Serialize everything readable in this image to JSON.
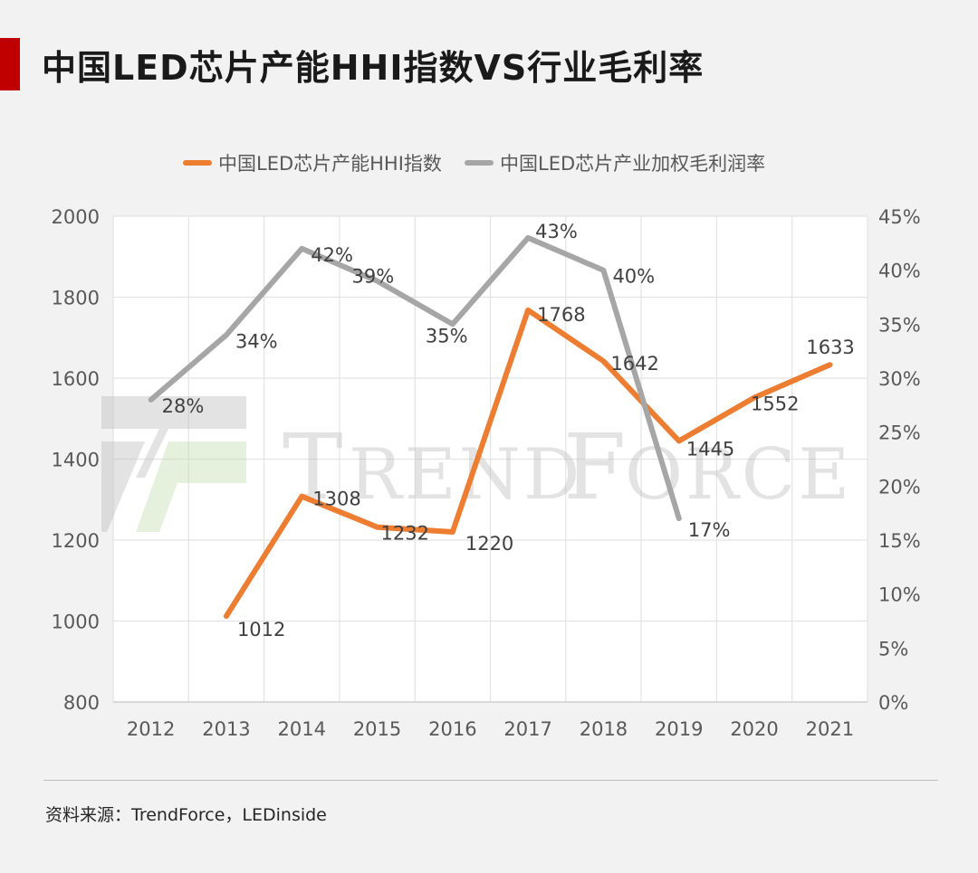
{
  "page": {
    "title": "中国LED芯片产能HHI指数VS行业毛利率",
    "source": "资料来源：TrendForce，LEDinside",
    "watermark": "TRENDFORCE",
    "accent": "#c00000"
  },
  "chart_data": {
    "type": "line",
    "title": "",
    "categories": [
      "2012",
      "2013",
      "2014",
      "2015",
      "2016",
      "2017",
      "2018",
      "2019",
      "2020",
      "2021"
    ],
    "y_left": {
      "min": 800,
      "max": 2000,
      "step": 200,
      "ticks": [
        "800",
        "1000",
        "1200",
        "1400",
        "1600",
        "1800",
        "2000"
      ]
    },
    "y_right": {
      "min": 0,
      "max": 45,
      "step": 5,
      "ticks": [
        "0%",
        "5%",
        "10%",
        "15%",
        "20%",
        "25%",
        "30%",
        "35%",
        "40%",
        "45%"
      ]
    },
    "grid": true,
    "legend_position": "top-center",
    "series": [
      {
        "name": "中国LED芯片产能HHI指数",
        "axis": "left",
        "color": "#ed7d31",
        "values": [
          null,
          1012,
          1308,
          1232,
          1220,
          1768,
          1642,
          1445,
          1552,
          1633
        ],
        "labels": [
          "",
          "1012",
          "1308",
          "1232",
          "1220",
          "1768",
          "1642",
          "1445",
          "1552",
          "1633"
        ]
      },
      {
        "name": "中国LED芯片产业加权毛利润率",
        "axis": "right",
        "color": "#a6a6a6",
        "values": [
          28,
          34,
          42,
          39,
          35,
          43,
          40,
          17,
          null,
          null
        ],
        "labels": [
          "28%",
          "34%",
          "42%",
          "39%",
          "35%",
          "43%",
          "40%",
          "17%",
          "",
          ""
        ]
      }
    ]
  }
}
